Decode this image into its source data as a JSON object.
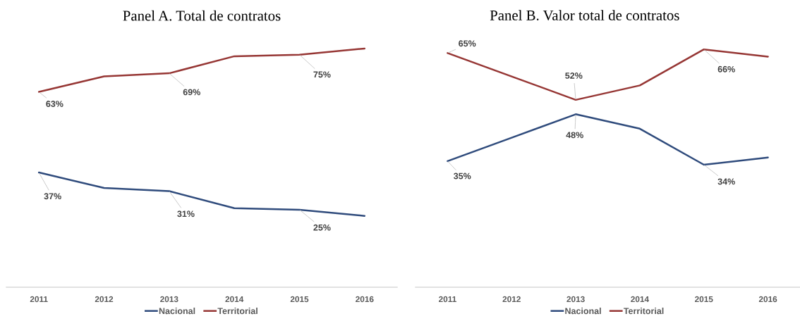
{
  "chart_data": [
    {
      "type": "line",
      "title": "Panel A. Total de contratos",
      "categories": [
        "2011",
        "2012",
        "2013",
        "2014",
        "2015",
        "2016"
      ],
      "tick_labels": "x",
      "legend": "bottom",
      "series": [
        {
          "name": "Nacional",
          "color": "#2f4b7c",
          "values": [
            37,
            32,
            31,
            25.5,
            25,
            23
          ],
          "value_labels": [
            "37%",
            null,
            "31%",
            null,
            "25%",
            null
          ]
        },
        {
          "name": "Territorial",
          "color": "#963634",
          "values": [
            63,
            68,
            69,
            74.5,
            75,
            77
          ],
          "value_labels": [
            "63%",
            null,
            "69%",
            null,
            "75%",
            null
          ]
        }
      ]
    },
    {
      "type": "line",
      "title": "Panel B. Valor total de contratos",
      "categories": [
        "2011",
        "2012",
        "2013",
        "2014",
        "2015",
        "2016"
      ],
      "tick_labels": "x",
      "legend": "bottom",
      "series": [
        {
          "name": "Nacional",
          "color": "#2f4b7c",
          "values": [
            35,
            41.5,
            48,
            44,
            34,
            36
          ],
          "value_labels": [
            "35%",
            null,
            "48%",
            null,
            "34%",
            null
          ]
        },
        {
          "name": "Territorial",
          "color": "#963634",
          "values": [
            65,
            58.5,
            52,
            56,
            66,
            64
          ],
          "value_labels": [
            "65%",
            null,
            "52%",
            null,
            "66%",
            null
          ]
        }
      ]
    }
  ]
}
